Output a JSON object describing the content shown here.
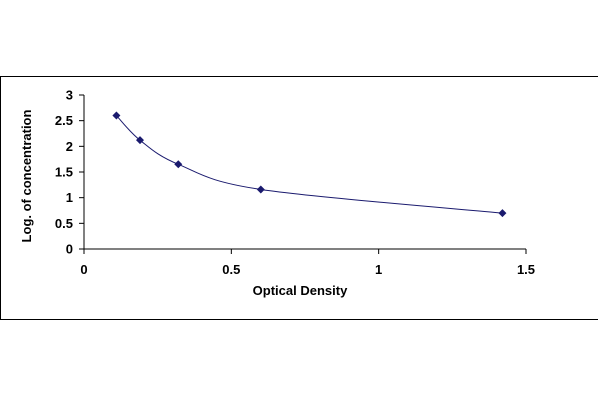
{
  "chart_data": {
    "type": "scatter",
    "title": "",
    "xlabel": "Optical Density",
    "ylabel": "Log. of concentration",
    "xlim": [
      0,
      1.5
    ],
    "ylim": [
      0,
      3
    ],
    "x_ticks": [
      "0",
      "0.5",
      "1",
      "1.5"
    ],
    "y_ticks": [
      "0",
      "0.5",
      "1",
      "1.5",
      "2",
      "2.5",
      "3"
    ],
    "grid": false,
    "legend": "none",
    "series": [
      {
        "marker": "diamond",
        "color": "#1a1a6e",
        "line": "smooth",
        "x": [
          0.11,
          0.19,
          0.32,
          0.6,
          1.42
        ],
        "y": [
          2.6,
          2.12,
          1.65,
          1.16,
          0.7
        ]
      }
    ]
  }
}
